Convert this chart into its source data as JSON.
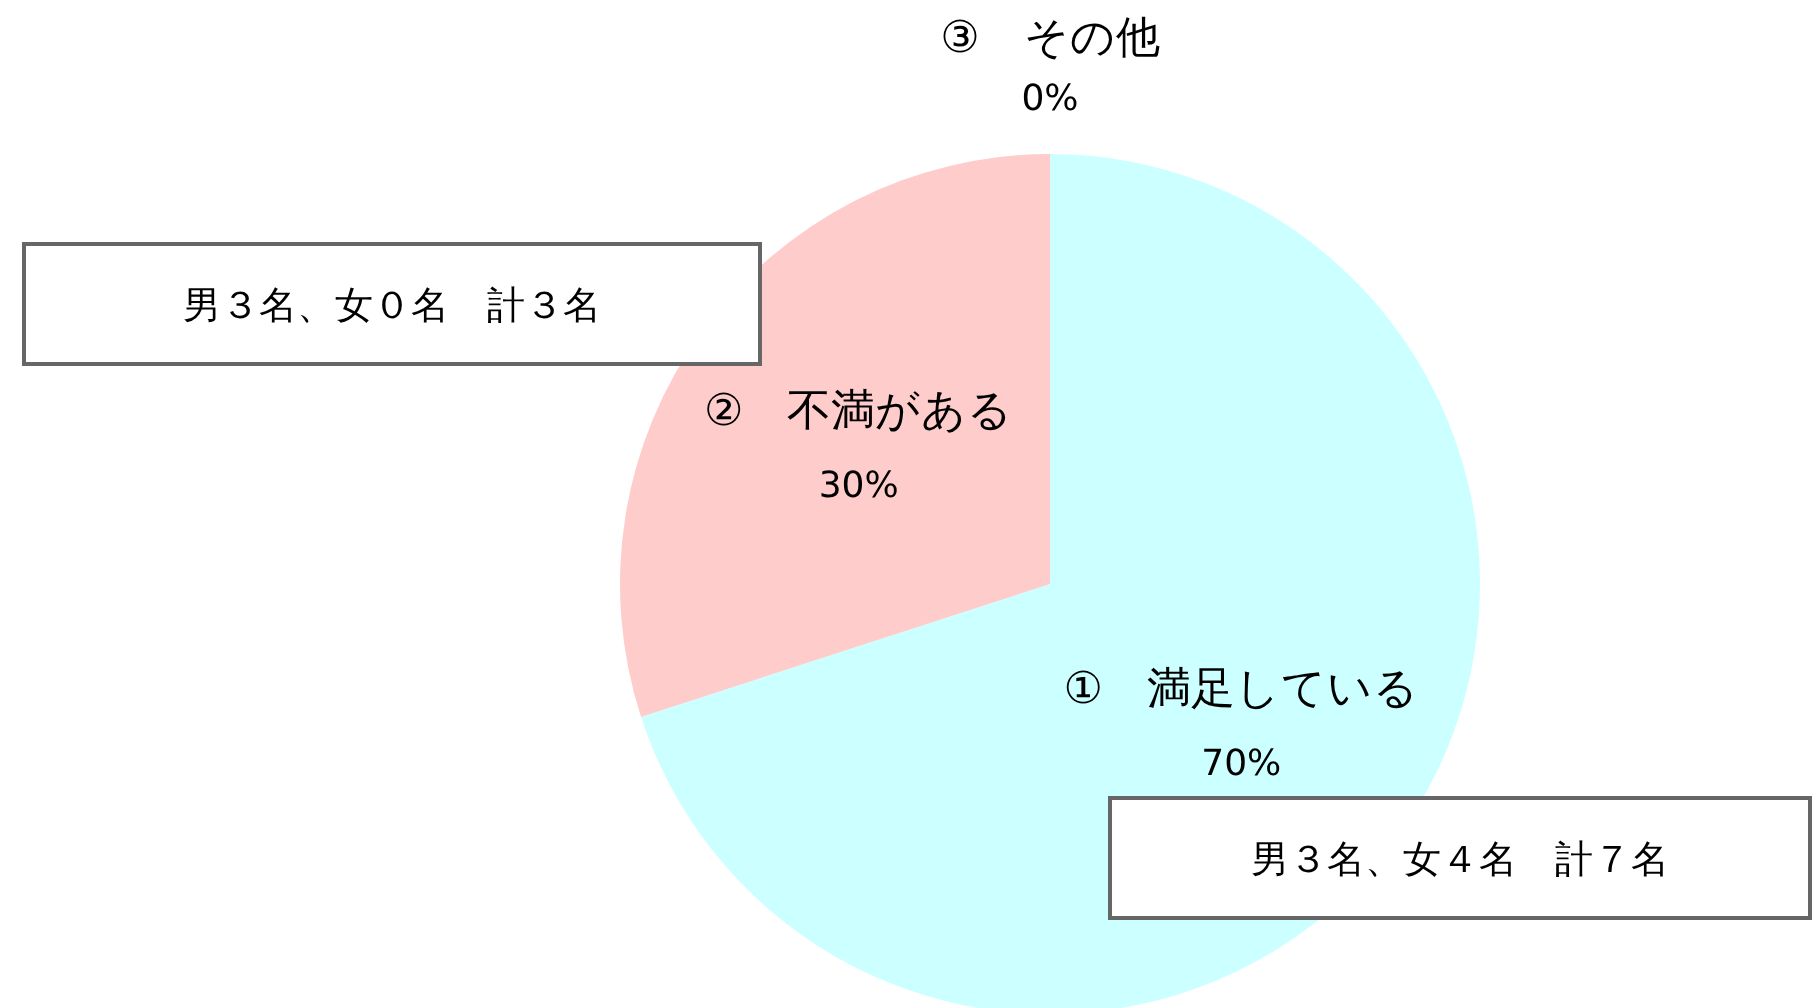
{
  "chart_data": {
    "type": "pie",
    "categories": [
      "①　満足している",
      "②　不満がある",
      "③　その他"
    ],
    "values": [
      70,
      30,
      0
    ],
    "colors": [
      "#ccffff",
      "#ffcccc",
      null
    ],
    "value_labels": [
      "70%",
      "30%",
      "0%"
    ],
    "legend": false,
    "annotations": [
      "男３名、女０名　計３名",
      "男３名、女４名　計７名"
    ]
  }
}
